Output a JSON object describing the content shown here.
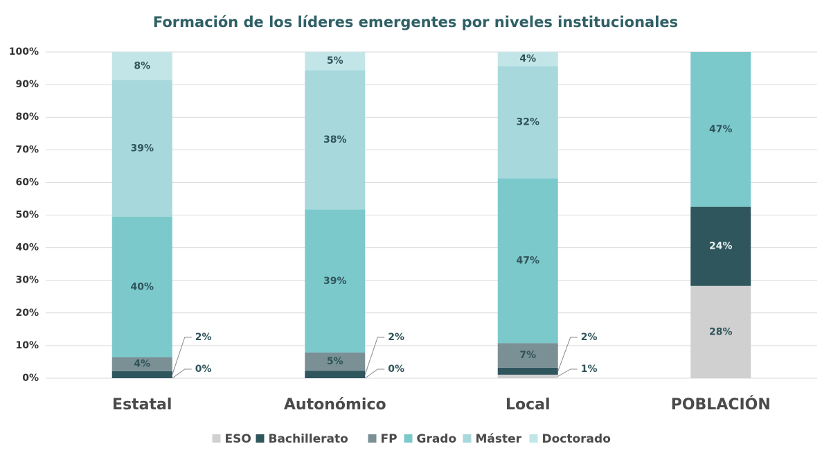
{
  "chart_data": {
    "type": "stacked_bar_100",
    "title": "Formación de los líderes emergentes por niveles institucionales",
    "categories": [
      "Estatal",
      "Autonómico",
      "Local",
      "POBLACIÓN"
    ],
    "series": [
      {
        "name": "ESO",
        "color": "#d0d0d0",
        "values": [
          0,
          0,
          1,
          28
        ],
        "value_labels": [
          "0%",
          "0%",
          "1%",
          "28%"
        ]
      },
      {
        "name": "Bachillerato",
        "color": "#2f565c",
        "values": [
          2,
          2,
          2,
          24
        ],
        "value_labels": [
          "2%",
          "2%",
          "2%",
          "24%"
        ]
      },
      {
        "name": "FP",
        "color": "#7a9095",
        "values": [
          4,
          5,
          7,
          null
        ],
        "value_labels": [
          "4%",
          "5%",
          "7%",
          null
        ]
      },
      {
        "name": "Grado",
        "color": "#7cc9cc",
        "values": [
          40,
          39,
          47,
          47
        ],
        "value_labels": [
          "40%",
          "39%",
          "47%",
          "47%"
        ]
      },
      {
        "name": "Máster",
        "color": "#a6d8dc",
        "values": [
          39,
          38,
          32,
          null
        ],
        "value_labels": [
          "39%",
          "38%",
          "32%",
          null
        ]
      },
      {
        "name": "Doctorado",
        "color": "#c2e6e8",
        "values": [
          8,
          5,
          4,
          null
        ],
        "value_labels": [
          "8%",
          "5%",
          "4%",
          null
        ]
      }
    ],
    "ylim": [
      0,
      100
    ],
    "yticks": [
      {
        "value": 0,
        "label": "0%"
      },
      {
        "value": 10,
        "label": "10%"
      },
      {
        "value": 20,
        "label": "20%"
      },
      {
        "value": 30,
        "label": "30%"
      },
      {
        "value": 40,
        "label": "40%"
      },
      {
        "value": 50,
        "label": "50%"
      },
      {
        "value": 60,
        "label": "60%"
      },
      {
        "value": 70,
        "label": "70%"
      },
      {
        "value": 80,
        "label": "80%"
      },
      {
        "value": 90,
        "label": "90%"
      },
      {
        "value": 100,
        "label": "100%"
      }
    ],
    "grid": true,
    "legend": "bottom"
  }
}
